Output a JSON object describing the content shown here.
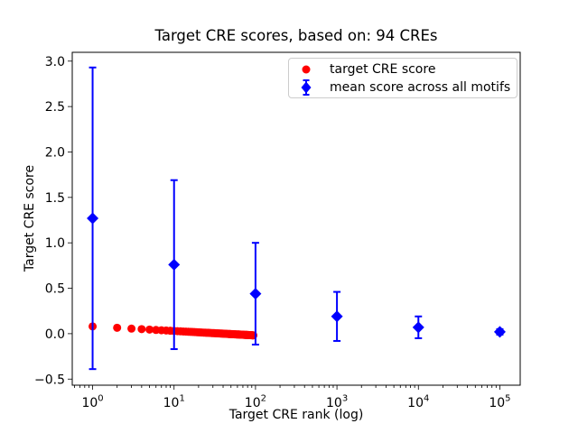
{
  "chart_data": {
    "type": "scatter",
    "title": "Target CRE scores, based on: 94 CREs",
    "xlabel": "Target CRE rank (log)",
    "ylabel": "Target CRE score",
    "x_scale": "log",
    "grid": false,
    "xlim": [
      0.5623,
      177828
    ],
    "ylim": [
      -0.567,
      3.097
    ],
    "x_ticks": [
      {
        "value": 1,
        "mantissa": "10",
        "exponent": "0"
      },
      {
        "value": 10,
        "mantissa": "10",
        "exponent": "1"
      },
      {
        "value": 100,
        "mantissa": "10",
        "exponent": "2"
      },
      {
        "value": 1000,
        "mantissa": "10",
        "exponent": "3"
      },
      {
        "value": 10000,
        "mantissa": "10",
        "exponent": "4"
      },
      {
        "value": 100000,
        "mantissa": "10",
        "exponent": "5"
      }
    ],
    "y_ticks": [
      {
        "value": -0.5,
        "label": "−0.5"
      },
      {
        "value": 0.0,
        "label": "0.0"
      },
      {
        "value": 0.5,
        "label": "0.5"
      },
      {
        "value": 1.0,
        "label": "1.0"
      },
      {
        "value": 1.5,
        "label": "1.5"
      },
      {
        "value": 2.0,
        "label": "2.0"
      },
      {
        "value": 2.5,
        "label": "2.5"
      },
      {
        "value": 3.0,
        "label": "3.0"
      }
    ],
    "legend": {
      "position": "upper right",
      "items": [
        {
          "label": "target CRE score",
          "marker": "circle",
          "color": "#ff0000"
        },
        {
          "label": "mean score across all motifs",
          "marker": "diamond_errorbar",
          "color": "#0000ff"
        }
      ]
    },
    "series": [
      {
        "name": "target CRE score",
        "marker": "circle",
        "color": "#ff0000",
        "x_description": "target CRE rank, 1 to 94 (rank = array index + 1)",
        "scores_by_rank": [
          0.08,
          0.065,
          0.056,
          0.05,
          0.045,
          0.041,
          0.038,
          0.035,
          0.032,
          0.03,
          0.028,
          0.026,
          0.024,
          0.023,
          0.021,
          0.02,
          0.019,
          0.017,
          0.016,
          0.015,
          0.014,
          0.013,
          0.012,
          0.011,
          0.01,
          0.01,
          0.009,
          0.008,
          0.007,
          0.006,
          0.006,
          0.005,
          0.004,
          0.004,
          0.003,
          0.003,
          0.002,
          0.001,
          0.001,
          0.0,
          0.0,
          -0.001,
          -0.001,
          -0.002,
          -0.002,
          -0.003,
          -0.003,
          -0.004,
          -0.004,
          -0.005,
          -0.005,
          -0.005,
          -0.006,
          -0.006,
          -0.007,
          -0.007,
          -0.007,
          -0.008,
          -0.008,
          -0.008,
          -0.009,
          -0.009,
          -0.009,
          -0.01,
          -0.01,
          -0.01,
          -0.011,
          -0.011,
          -0.011,
          -0.012,
          -0.012,
          -0.012,
          -0.013,
          -0.013,
          -0.013,
          -0.013,
          -0.014,
          -0.014,
          -0.014,
          -0.015,
          -0.015,
          -0.015,
          -0.015,
          -0.016,
          -0.016,
          -0.016,
          -0.016,
          -0.017,
          -0.017,
          -0.017,
          -0.017,
          -0.018,
          -0.018,
          -0.018
        ]
      },
      {
        "name": "mean score across all motifs",
        "marker": "diamond",
        "color": "#0000ff",
        "x": [
          1,
          10,
          100,
          1000,
          10000,
          100000
        ],
        "y": [
          1.27,
          0.76,
          0.44,
          0.19,
          0.07,
          0.02
        ],
        "yerr": [
          1.66,
          0.93,
          0.56,
          0.27,
          0.12,
          0.03
        ]
      }
    ]
  }
}
